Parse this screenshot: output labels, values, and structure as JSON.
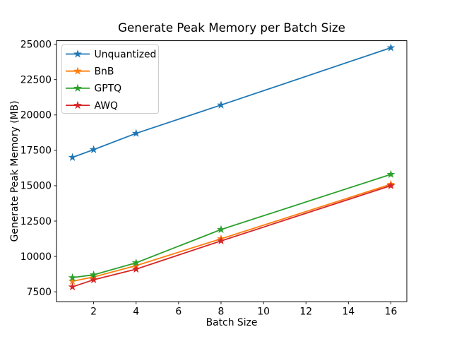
{
  "chart_data": {
    "type": "line",
    "title": "Generate Peak Memory per Batch Size",
    "xlabel": "Batch Size",
    "ylabel": "Generate Peak Memory (MB)",
    "x": [
      1,
      2,
      4,
      8,
      16
    ],
    "series": [
      {
        "name": "Unquantized",
        "color": "#1f77b4",
        "values": [
          17000,
          17550,
          18700,
          20700,
          24750
        ]
      },
      {
        "name": "BnB",
        "color": "#ff7f0e",
        "values": [
          8250,
          8550,
          9350,
          11250,
          15100
        ]
      },
      {
        "name": "GPTQ",
        "color": "#2ca02c",
        "values": [
          8500,
          8700,
          9550,
          11900,
          15800
        ]
      },
      {
        "name": "AWQ",
        "color": "#d62728",
        "values": [
          7850,
          8350,
          9100,
          11100,
          15000
        ]
      }
    ],
    "marker": "star",
    "xticks": [
      2,
      4,
      6,
      8,
      10,
      12,
      14,
      16
    ],
    "yticks": [
      7500,
      10000,
      12500,
      15000,
      17500,
      20000,
      22500,
      25000
    ],
    "xlim": [
      0.25,
      16.75
    ],
    "ylim": [
      6800,
      25250
    ],
    "grid": false,
    "legend_position": "upper left",
    "axis_color": "#000000",
    "legend_border_color": "#cccccc",
    "background_color": "#ffffff"
  }
}
